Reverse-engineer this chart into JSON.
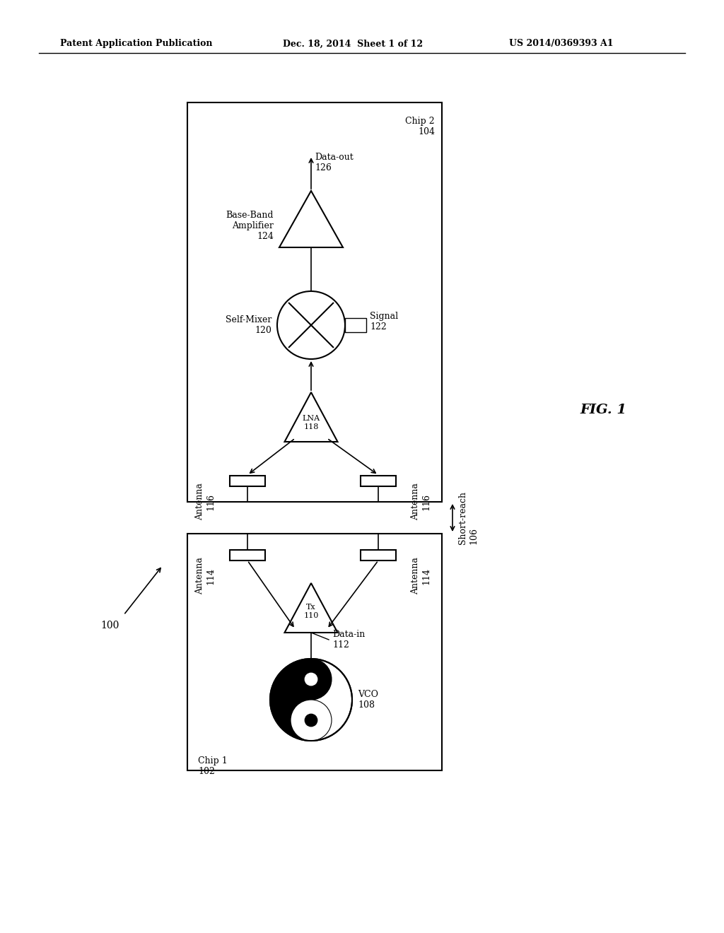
{
  "bg_color": "#ffffff",
  "header_left": "Patent Application Publication",
  "header_mid": "Dec. 18, 2014  Sheet 1 of 12",
  "header_right": "US 2014/0369393 A1",
  "fig_label": "FIG. 1",
  "ref_100": "100",
  "chip1_label": "Chip 1\n102",
  "chip2_label": "Chip 2\n104",
  "short_reach_label": "Short-reach\n106",
  "vco_label": "VCO\n108",
  "tx_label": "Tx\n110",
  "datain_label": "Data-in\n112",
  "ant114_label": "Antenna\n114",
  "ant116_label": "Antenna\n116",
  "lna_label": "LNA\n118",
  "mixer_label": "Self-Mixer\n120",
  "signal_label": "Signal\n122",
  "bba_label": "Base-Band\nAmplifier\n124",
  "dataout_label": "Data-out\n126"
}
